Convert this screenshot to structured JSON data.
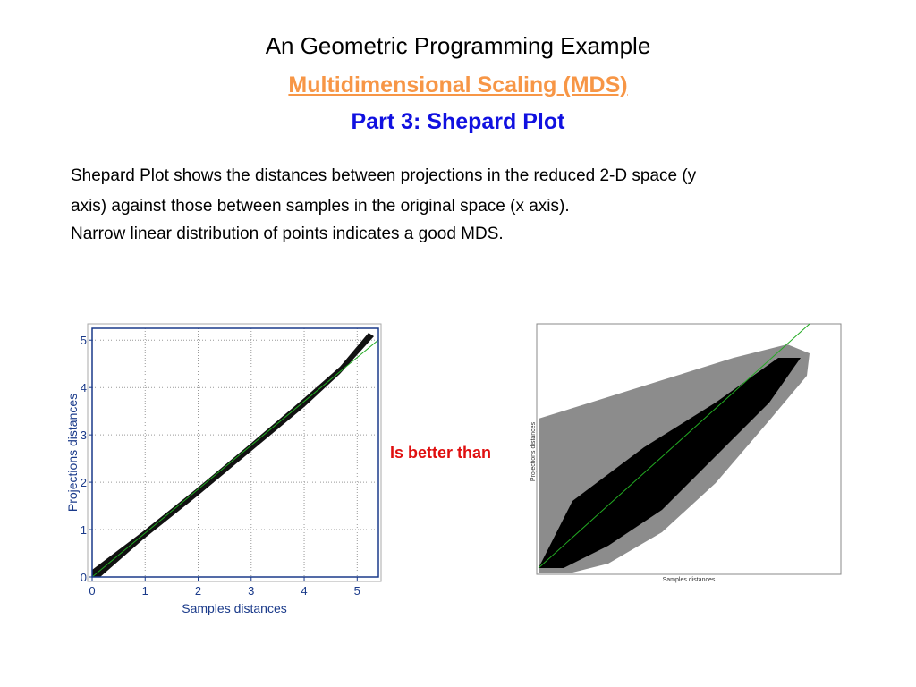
{
  "header": {
    "title": "An Geometric Programming Example",
    "subtitle": "Multidimensional Scaling (MDS)",
    "part": "Part 3: Shepard Plot"
  },
  "body": [
    "Shepard Plot shows the distances between projections in the reduced 2-D space (y",
    "axis) against those between samples in the original space (x axis).",
    "Narrow linear distribution of points indicates a good MDS."
  ],
  "left_plot": {
    "x_label": "Samples distances",
    "y_label": "Projections distances",
    "xlim": [
      0,
      5.4
    ],
    "ylim": [
      0,
      5.25
    ],
    "xticks": [
      0,
      1,
      2,
      3,
      4,
      5
    ],
    "yticks": [
      0,
      1,
      2,
      3,
      4,
      5
    ]
  },
  "comparison": "Is better than",
  "right_plot": {
    "x_label": "Samples distances",
    "y_label": "Projections distances"
  }
}
